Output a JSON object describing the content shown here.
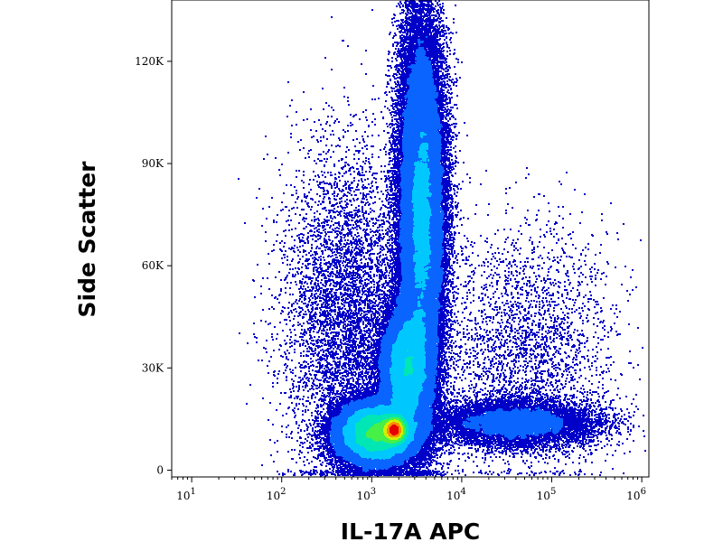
{
  "chart_data": {
    "type": "scatter",
    "subtype": "flow-cytometry-density-dot-plot",
    "title": "",
    "xlabel": "IL-17A APC",
    "ylabel": "Side Scatter",
    "x_scale": "log",
    "y_scale": "linear",
    "xlim": [
      6,
      1200000
    ],
    "ylim": [
      -2000,
      138000
    ],
    "x_ticks": [
      {
        "value": 10,
        "base": "10",
        "exp": "1"
      },
      {
        "value": 100,
        "base": "10",
        "exp": "2"
      },
      {
        "value": 1000,
        "base": "10",
        "exp": "3"
      },
      {
        "value": 10000,
        "base": "10",
        "exp": "4"
      },
      {
        "value": 100000,
        "base": "10",
        "exp": "5"
      },
      {
        "value": 1000000,
        "base": "10",
        "exp": "6"
      }
    ],
    "y_ticks": [
      {
        "value": 0,
        "label": "0"
      },
      {
        "value": 30000,
        "label": "30K"
      },
      {
        "value": 60000,
        "label": "60K"
      },
      {
        "value": 90000,
        "label": "90K"
      },
      {
        "value": 120000,
        "label": "120K"
      }
    ],
    "grid": false,
    "legend": "none",
    "colormap": [
      "#0000c8",
      "#0a64ff",
      "#00c8ff",
      "#00e6b4",
      "#46f046",
      "#d2f000",
      "#ff8c00",
      "#e60000"
    ],
    "populations": [
      {
        "x_log_center": 3.55,
        "y_center": 75000,
        "x_log_spread": 0.13,
        "y_spread": 28000,
        "weight": 0.34
      },
      {
        "x_log_center": 3.38,
        "y_center": 30000,
        "x_log_spread": 0.14,
        "y_spread": 9000,
        "weight": 0.18
      },
      {
        "x_log_center": 3.05,
        "y_center": 11000,
        "x_log_spread": 0.22,
        "y_spread": 4500,
        "weight": 0.28
      },
      {
        "x_log_center": 3.25,
        "y_center": 12000,
        "x_log_spread": 0.06,
        "y_spread": 1800,
        "weight": 0.08
      },
      {
        "x_log_center": 4.6,
        "y_center": 14000,
        "x_log_spread": 0.45,
        "y_spread": 3500,
        "weight": 0.06
      },
      {
        "x_log_center": 4.7,
        "y_center": 35000,
        "x_log_spread": 0.5,
        "y_spread": 18000,
        "weight": 0.02
      },
      {
        "x_log_center": 2.7,
        "y_center": 45000,
        "x_log_spread": 0.35,
        "y_spread": 25000,
        "weight": 0.04
      }
    ],
    "peak": {
      "x": 1800,
      "y": 12000
    }
  }
}
